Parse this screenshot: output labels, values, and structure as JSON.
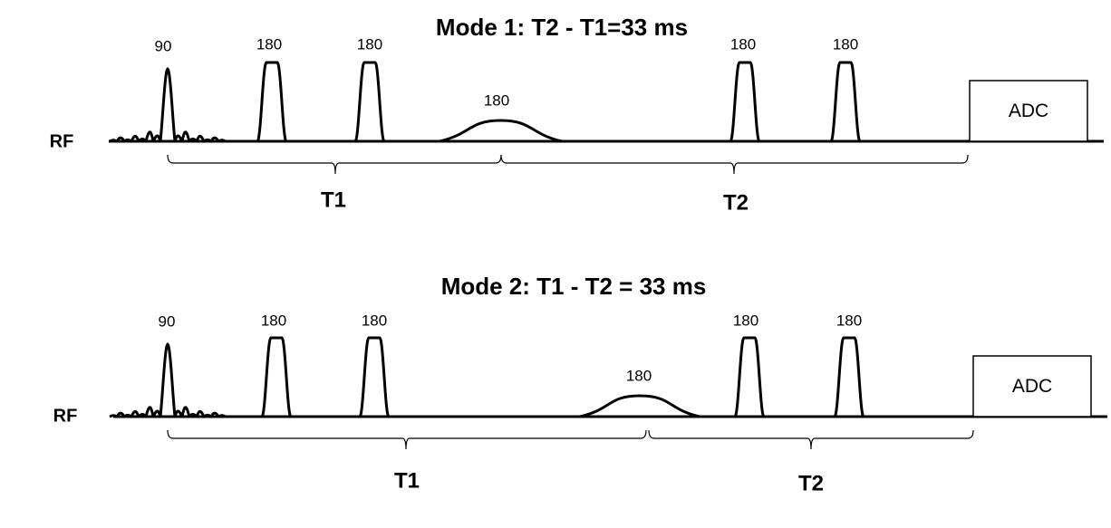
{
  "panels": [
    {
      "title": "Mode 1: T2 - T1=33 ms",
      "axis_label": "RF",
      "pulse_labels": [
        "90",
        "180",
        "180",
        "180",
        "180",
        "180"
      ],
      "adc": "ADC",
      "intervals": [
        "T1",
        "T2"
      ]
    },
    {
      "title": "Mode 2: T1 - T2 = 33 ms",
      "axis_label": "RF",
      "pulse_labels": [
        "90",
        "180",
        "180",
        "180",
        "180",
        "180"
      ],
      "adc": "ADC",
      "intervals": [
        "T1",
        "T2"
      ]
    }
  ]
}
